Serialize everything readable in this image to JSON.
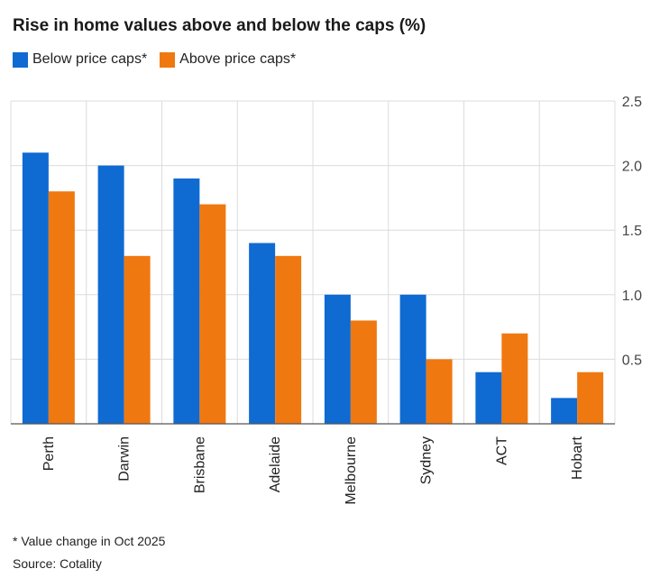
{
  "chart_data": {
    "type": "bar",
    "title": "Rise in home values above and below the caps (%)",
    "categories": [
      "Perth",
      "Darwin",
      "Brisbane",
      "Adelaide",
      "Melbourne",
      "Sydney",
      "ACT",
      "Hobart"
    ],
    "series": [
      {
        "name": "Below price caps*",
        "values": [
          2.1,
          2.0,
          1.9,
          1.4,
          1.0,
          1.0,
          0.4,
          0.2
        ],
        "color": "#0f6ad2"
      },
      {
        "name": "Above price caps*",
        "values": [
          1.8,
          1.3,
          1.7,
          1.3,
          0.8,
          0.5,
          0.7,
          0.4
        ],
        "color": "#f07810"
      }
    ],
    "ylim": [
      0,
      2.5
    ],
    "yticks": [
      "0.5",
      "1.0",
      "1.5",
      "2.0",
      "2.5"
    ],
    "ytick_values": [
      0.5,
      1.0,
      1.5,
      2.0,
      2.5
    ],
    "grid": true,
    "legend": "top-left",
    "y_axis_side": "right",
    "xlabel": "",
    "ylabel": ""
  },
  "footnote": "* Value change in Oct 2025",
  "source": "Source: Cotality"
}
